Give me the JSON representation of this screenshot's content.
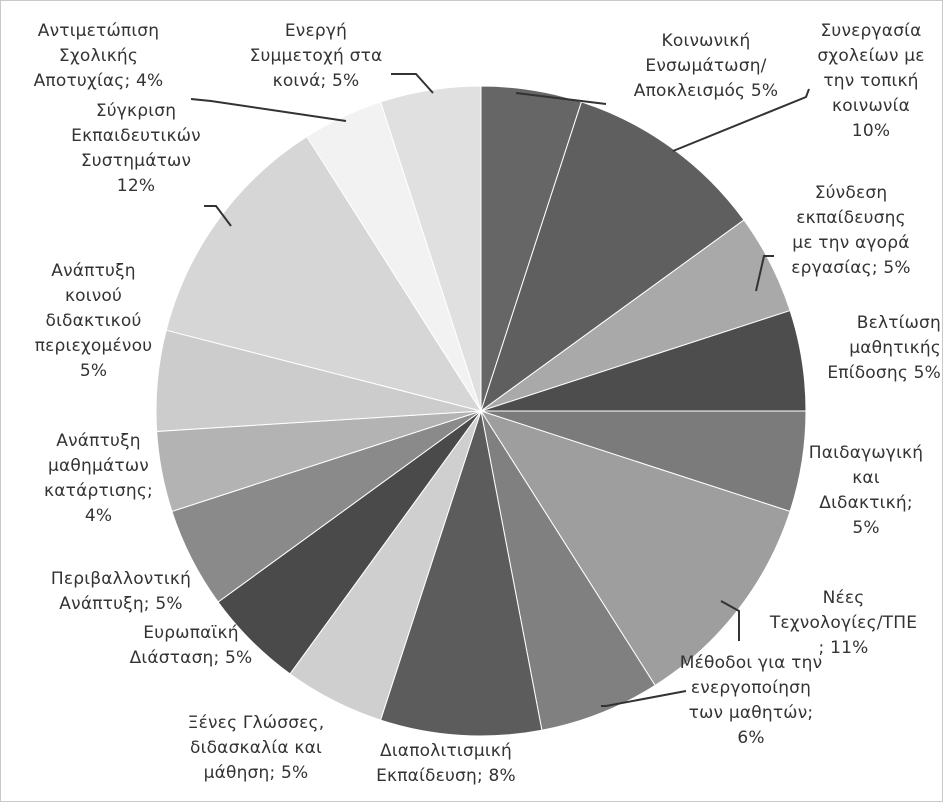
{
  "chart_data": {
    "type": "pie",
    "start": "12 o'clock",
    "direction": "clockwise",
    "slices": [
      {
        "label": "Κοινωνική\nΕνσωμάτωση/\nΑποκλεισμός 5%",
        "value": 5,
        "color": "#666666"
      },
      {
        "label": "Συνεργασία\nσχολείων με\nτην τοπική\nκοινωνία\n10%",
        "value": 10,
        "color": "#5f5f5f"
      },
      {
        "label": "Σύνδεση\nεκπαίδευσης\nμε την αγορά\nεργασίας; 5%",
        "value": 5,
        "color": "#a9a9a9"
      },
      {
        "label": "Βελτίωση\nμαθητικής\nΕπίδοσης 5%",
        "value": 5,
        "color": "#4d4d4d"
      },
      {
        "label": "Παιδαγωγική\nκαι\nΔιδακτική;\n5%",
        "value": 5,
        "color": "#7b7b7b"
      },
      {
        "label": "Νέες\nΤεχνολογίες/ΤΠΕ\n; 11%",
        "value": 11,
        "color": "#9e9e9e"
      },
      {
        "label": "Μέθοδοι για την\nενεργοποίηση\nτων μαθητών;\n6%",
        "value": 6,
        "color": "#808080"
      },
      {
        "label": "Διαπολιτισμική\nΕκπαίδευση; 8%",
        "value": 8,
        "color": "#5c5c5c"
      },
      {
        "label": "Ξένες Γλώσσες,\nδιδασκαλία και\nμάθηση; 5%",
        "value": 5,
        "color": "#cfcfcf"
      },
      {
        "label": "Ευρωπαϊκή\nΔιάσταση; 5%",
        "value": 5,
        "color": "#4a4a4a"
      },
      {
        "label": "Περιβαλλοντική\nΑνάπτυξη; 5%",
        "value": 5,
        "color": "#8a8a8a"
      },
      {
        "label": "Ανάπτυξη\nμαθημάτων\nκατάρτισης;\n4%",
        "value": 4,
        "color": "#b3b3b3"
      },
      {
        "label": "Ανάπτυξη\nκοινού\nδιδακτικού\nπεριεχομένου\n5%",
        "value": 5,
        "color": "#cccccc"
      },
      {
        "label": "Σύγκριση\nΕκπαιδευτικών\nΣυστημάτων\n12%",
        "value": 12,
        "color": "#d6d6d6"
      },
      {
        "label": "Αντιμετώπιση\nΣχολικής\nΑποτυχίας; 4%",
        "value": 4,
        "color": "#f2f2f2"
      },
      {
        "label": "Ενεργή\nΣυμμετοχή στα\nκοινά; 5%",
        "value": 5,
        "color": "#e0e0e0"
      }
    ]
  }
}
